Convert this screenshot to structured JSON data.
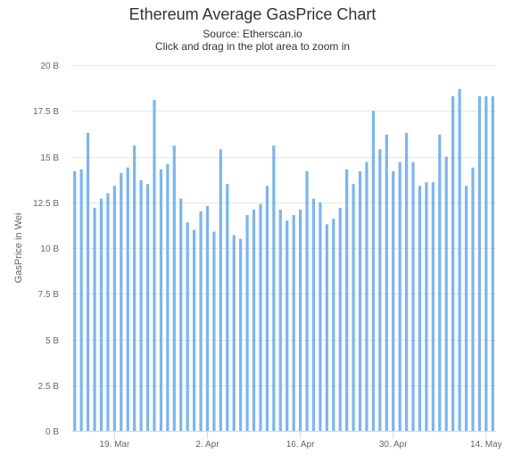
{
  "chart_data": {
    "type": "bar",
    "title": "Ethereum Average GasPrice Chart",
    "subtitle_lines": [
      "Source: Etherscan.io",
      "Click and drag in the plot area to zoom in"
    ],
    "xlabel": "",
    "ylabel": "GasPrice in Wei",
    "ylim": [
      0,
      20
    ],
    "y_unit": "B",
    "y_ticks": [
      "0 B",
      "2.5 B",
      "5 B",
      "7.5 B",
      "10 B",
      "12.5 B",
      "15 B",
      "17.5 B",
      "20 B"
    ],
    "y_tick_values": [
      0,
      2.5,
      5,
      7.5,
      10,
      12.5,
      15,
      17.5,
      20
    ],
    "x_tick_labels": [
      "19. Mar",
      "2. Apr",
      "16. Apr",
      "30. Apr",
      "14. May"
    ],
    "x_tick_category_index": [
      6,
      20,
      34,
      48,
      62
    ],
    "grid": true,
    "bar_color": "#7cb5ec",
    "values": [
      14.2,
      14.3,
      16.3,
      12.2,
      12.7,
      13.0,
      13.4,
      14.1,
      14.4,
      15.6,
      13.7,
      13.5,
      18.1,
      14.3,
      14.6,
      15.6,
      12.7,
      11.4,
      11.0,
      12.0,
      12.3,
      10.9,
      15.4,
      13.5,
      10.7,
      10.5,
      11.8,
      12.1,
      12.4,
      13.4,
      15.6,
      12.1,
      11.5,
      11.8,
      12.1,
      14.2,
      12.7,
      12.5,
      11.3,
      11.6,
      12.2,
      14.3,
      13.5,
      14.2,
      14.7,
      17.5,
      15.4,
      16.2,
      14.2,
      14.7,
      16.3,
      14.7,
      13.4,
      13.6,
      13.6,
      16.2,
      15.0,
      18.3,
      18.7,
      13.4,
      14.4,
      18.3,
      18.3,
      18.3
    ]
  }
}
